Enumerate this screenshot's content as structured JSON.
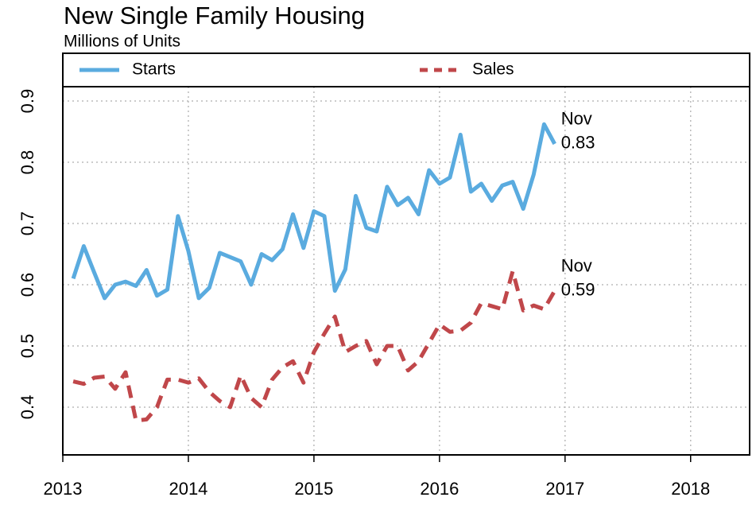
{
  "chart_data": {
    "type": "line",
    "title": "New Single Family Housing",
    "subtitle": "Millions of Units",
    "x": [
      2013.083,
      2013.167,
      2013.25,
      2013.333,
      2013.417,
      2013.5,
      2013.583,
      2013.667,
      2013.75,
      2013.833,
      2013.917,
      2014.0,
      2014.083,
      2014.167,
      2014.25,
      2014.333,
      2014.417,
      2014.5,
      2014.583,
      2014.667,
      2014.75,
      2014.833,
      2014.917,
      2015.0,
      2015.083,
      2015.167,
      2015.25,
      2015.333,
      2015.417,
      2015.5,
      2015.583,
      2015.667,
      2015.75,
      2015.833,
      2015.917,
      2016.0,
      2016.083,
      2016.167,
      2016.25,
      2016.333,
      2016.417,
      2016.5,
      2016.583,
      2016.667,
      2016.75,
      2016.833,
      2016.917
    ],
    "series": [
      {
        "name": "Starts",
        "color": "#5aabdf",
        "dash": false,
        "end_labels": [
          "Nov",
          "0.83"
        ],
        "values": [
          0.61,
          0.663,
          0.62,
          0.578,
          0.6,
          0.605,
          0.598,
          0.624,
          0.582,
          0.592,
          0.712,
          0.655,
          0.578,
          0.595,
          0.652,
          0.645,
          0.638,
          0.6,
          0.65,
          0.64,
          0.658,
          0.715,
          0.66,
          0.72,
          0.712,
          0.59,
          0.625,
          0.745,
          0.693,
          0.687,
          0.76,
          0.73,
          0.742,
          0.715,
          0.787,
          0.765,
          0.775,
          0.845,
          0.752,
          0.765,
          0.737,
          0.762,
          0.768,
          0.724,
          0.78,
          0.862,
          0.83
        ]
      },
      {
        "name": "Sales",
        "color": "#c0474a",
        "dash": true,
        "end_labels": [
          "Nov",
          "0.59"
        ],
        "values": [
          0.442,
          0.438,
          0.448,
          0.45,
          0.43,
          0.457,
          0.378,
          0.38,
          0.4,
          0.445,
          0.445,
          0.44,
          0.447,
          0.425,
          0.41,
          0.4,
          0.452,
          0.415,
          0.4,
          0.445,
          0.465,
          0.475,
          0.44,
          0.49,
          0.52,
          0.548,
          0.49,
          0.5,
          0.508,
          0.47,
          0.5,
          0.5,
          0.46,
          0.475,
          0.505,
          0.535,
          0.523,
          0.525,
          0.538,
          0.57,
          0.565,
          0.56,
          0.622,
          0.558,
          0.566,
          0.56,
          0.59
        ]
      }
    ],
    "xlim": [
      2013,
      2018.47
    ],
    "xticks": [
      2013,
      2014,
      2015,
      2016,
      2017,
      2018
    ],
    "ylim": [
      0.322,
      0.978
    ],
    "yticks": [
      0.4,
      0.5,
      0.6,
      0.7,
      0.8,
      0.9
    ],
    "grid": true,
    "legend": "top"
  }
}
